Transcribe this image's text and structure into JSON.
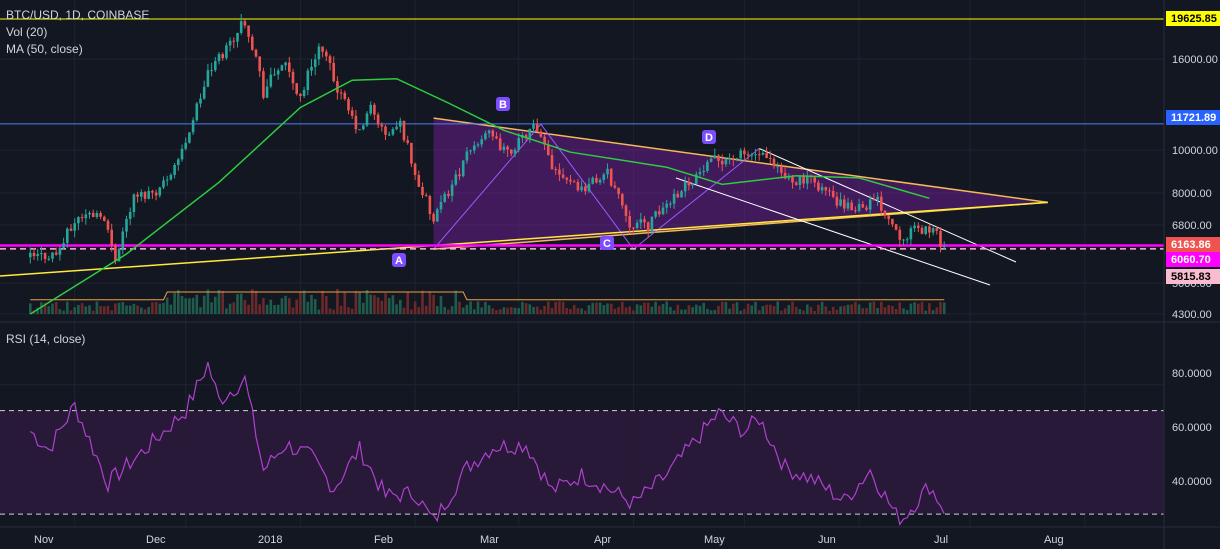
{
  "legend": {
    "symbol_line": "BTC/USD, 1D, COINBASE",
    "volume_line": "Vol (20)",
    "ma_line": "MA (50, close)",
    "rsi_line": "RSI (14, close)"
  },
  "price_axis_ticks": [
    "16000.00",
    "10000.00",
    "8000.00",
    "6800.00",
    "5000.00",
    "4300.00"
  ],
  "price_badges": [
    {
      "label": "19625.85",
      "bg": "#ffff00",
      "fg": "#000000"
    },
    {
      "label": "11721.89",
      "bg": "#2962ff",
      "fg": "#ffffff"
    },
    {
      "label": "6163.86",
      "bg": "#ef5350",
      "fg": "#ffffff"
    },
    {
      "label": "6060.70",
      "bg": "#ff00ff",
      "fg": "#ffffff"
    },
    {
      "label": "5815.83",
      "bg": "#f8bbd0",
      "fg": "#000000"
    }
  ],
  "rsi_axis_ticks": [
    "80.0000",
    "60.0000",
    "40.0000"
  ],
  "time_axis_labels": [
    "Nov",
    "Dec",
    "2018",
    "Feb",
    "Mar",
    "Apr",
    "May",
    "Jun",
    "Jul",
    "Aug"
  ],
  "pattern_points": [
    "A",
    "B",
    "C",
    "D"
  ],
  "colors": {
    "background": "#131722",
    "grid": "#1e2330",
    "up_candle": "#26a69a",
    "down_candle": "#ef5350",
    "ma_line": "#2ecc40",
    "triangle_fill": "#7b1fa2",
    "triangle_edge": "#f5b85a",
    "trendline": "#ffeb3b",
    "channel": "#ffffff",
    "magenta_level": "#ff00ff",
    "rsi_line": "#b040d0",
    "rsi_band": "#2a1a3a"
  },
  "chart_data": {
    "type": "candlestick",
    "title": "BTC/USD, 1D, COINBASE",
    "x_range": [
      "2017-10-20",
      "2018-08-31"
    ],
    "y_range": [
      4300,
      20000
    ],
    "horizontal_levels": [
      19625.85,
      11721.89,
      6163.86,
      6060.7,
      5815.83
    ],
    "price_path": [
      [
        "2017-10-20",
        5800
      ],
      [
        "2017-10-27",
        5900
      ],
      [
        "2017-11-02",
        7100
      ],
      [
        "2017-11-08",
        7300
      ],
      [
        "2017-11-12",
        5800
      ],
      [
        "2017-11-17",
        7800
      ],
      [
        "2017-11-24",
        8200
      ],
      [
        "2017-11-30",
        9900
      ],
      [
        "2017-12-07",
        15000
      ],
      [
        "2017-12-11",
        16500
      ],
      [
        "2017-12-17",
        19600
      ],
      [
        "2017-12-22",
        13800
      ],
      [
        "2017-12-27",
        15800
      ],
      [
        "2018-01-01",
        13500
      ],
      [
        "2018-01-06",
        17100
      ],
      [
        "2018-01-12",
        13500
      ],
      [
        "2018-01-17",
        11100
      ],
      [
        "2018-01-20",
        12800
      ],
      [
        "2018-01-24",
        10900
      ],
      [
        "2018-01-28",
        11700
      ],
      [
        "2018-02-01",
        8800
      ],
      [
        "2018-02-06",
        6900
      ],
      [
        "2018-02-10",
        8100
      ],
      [
        "2018-02-20",
        11200
      ],
      [
        "2018-02-26",
        9800
      ],
      [
        "2018-03-05",
        11500
      ],
      [
        "2018-03-10",
        9300
      ],
      [
        "2018-03-18",
        8200
      ],
      [
        "2018-03-25",
        8900
      ],
      [
        "2018-03-31",
        6900
      ],
      [
        "2018-04-05",
        6800
      ],
      [
        "2018-04-15",
        8400
      ],
      [
        "2018-04-24",
        9600
      ],
      [
        "2018-05-05",
        9800
      ],
      [
        "2018-05-12",
        8700
      ],
      [
        "2018-05-20",
        8500
      ],
      [
        "2018-05-28",
        7400
      ],
      [
        "2018-06-06",
        7700
      ],
      [
        "2018-06-12",
        6500
      ],
      [
        "2018-06-20",
        6700
      ],
      [
        "2018-06-24",
        6164
      ]
    ],
    "ma50_path": [
      [
        "2017-10-20",
        4300
      ],
      [
        "2017-11-15",
        5900
      ],
      [
        "2017-12-10",
        8500
      ],
      [
        "2018-01-01",
        12800
      ],
      [
        "2018-01-15",
        14600
      ],
      [
        "2018-01-27",
        14700
      ],
      [
        "2018-02-10",
        13100
      ],
      [
        "2018-02-25",
        11300
      ],
      [
        "2018-03-15",
        9900
      ],
      [
        "2018-04-10",
        9200
      ],
      [
        "2018-04-25",
        8400
      ],
      [
        "2018-05-15",
        8800
      ],
      [
        "2018-06-01",
        8700
      ],
      [
        "2018-06-20",
        7800
      ]
    ],
    "triangle": {
      "A": [
        "2018-02-06",
        6050
      ],
      "B": [
        "2018-03-07",
        11700
      ],
      "C": [
        "2018-04-01",
        6050
      ],
      "D": [
        "2018-05-05",
        10100
      ]
    },
    "triangle_apex": [
      "2018-07-22",
      7650
    ],
    "rsi": {
      "y_range": [
        25,
        95
      ],
      "levels": [
        70,
        30
      ],
      "path": [
        [
          "2017-10-20",
          62
        ],
        [
          "2017-10-25",
          55
        ],
        [
          "2017-11-01",
          72
        ],
        [
          "2017-11-10",
          42
        ],
        [
          "2017-11-20",
          55
        ],
        [
          "2017-12-01",
          70
        ],
        [
          "2017-12-07",
          88
        ],
        [
          "2017-12-10",
          74
        ],
        [
          "2017-12-17",
          82
        ],
        [
          "2017-12-22",
          47
        ],
        [
          "2017-12-28",
          57
        ],
        [
          "2018-01-04",
          52
        ],
        [
          "2018-01-10",
          40
        ],
        [
          "2018-01-17",
          55
        ],
        [
          "2018-01-24",
          37
        ],
        [
          "2018-02-01",
          38
        ],
        [
          "2018-02-06",
          27
        ],
        [
          "2018-02-15",
          48
        ],
        [
          "2018-02-22",
          56
        ],
        [
          "2018-03-03",
          57
        ],
        [
          "2018-03-10",
          39
        ],
        [
          "2018-03-18",
          45
        ],
        [
          "2018-03-24",
          41
        ],
        [
          "2018-04-01",
          34
        ],
        [
          "2018-04-10",
          45
        ],
        [
          "2018-04-24",
          69
        ],
        [
          "2018-05-01",
          62
        ],
        [
          "2018-05-05",
          67
        ],
        [
          "2018-05-12",
          48
        ],
        [
          "2018-05-20",
          43
        ],
        [
          "2018-05-28",
          35
        ],
        [
          "2018-06-04",
          47
        ],
        [
          "2018-06-12",
          27
        ],
        [
          "2018-06-20",
          41
        ],
        [
          "2018-06-24",
          32
        ]
      ]
    }
  }
}
